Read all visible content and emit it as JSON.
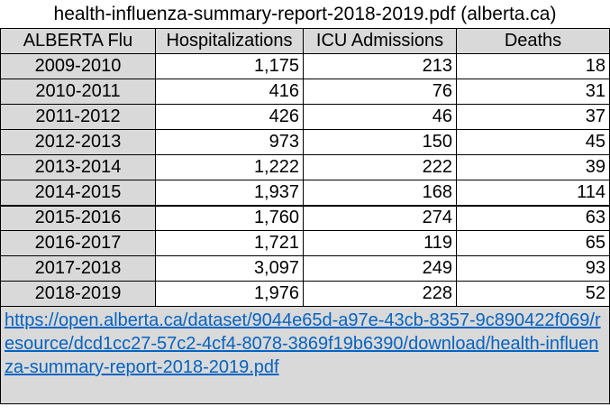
{
  "title": "health-influenza-summary-report-2018-2019.pdf (alberta.ca)",
  "table": {
    "headers": [
      "ALBERTA Flu",
      "Hospitalizations",
      "ICU Admissions",
      "Deaths"
    ],
    "rows": [
      {
        "season": "2009-2010",
        "hospitalizations": "1,175",
        "icu": "213",
        "deaths": "18"
      },
      {
        "season": "2010-2011",
        "hospitalizations": "416",
        "icu": "76",
        "deaths": "31"
      },
      {
        "season": "2011-2012",
        "hospitalizations": "426",
        "icu": "46",
        "deaths": "37"
      },
      {
        "season": "2012-2013",
        "hospitalizations": "973",
        "icu": "150",
        "deaths": "45"
      },
      {
        "season": "2013-2014",
        "hospitalizations": "1,222",
        "icu": "222",
        "deaths": "39"
      },
      {
        "season": "2014-2015",
        "hospitalizations": "1,937",
        "icu": "168",
        "deaths": "114"
      },
      {
        "season": "2015-2016",
        "hospitalizations": "1,760",
        "icu": "274",
        "deaths": "63"
      },
      {
        "season": "2016-2017",
        "hospitalizations": "1,721",
        "icu": "119",
        "deaths": "65"
      },
      {
        "season": "2017-2018",
        "hospitalizations": "3,097",
        "icu": "249",
        "deaths": "93"
      },
      {
        "season": "2018-2019",
        "hospitalizations": "1,976",
        "icu": "228",
        "deaths": "52"
      }
    ]
  },
  "source": {
    "link_text": "https://open.alberta.ca/dataset/9044e65d-a97e-43cb-8357-9c890422f069/resource/dcd1cc27-57c2-4cf4-8078-3869f19b6390/download/health-influenza-summary-report-2018-2019.pdf"
  },
  "colors": {
    "header_fill": "#d9d9d9",
    "link": "#0563c1"
  }
}
